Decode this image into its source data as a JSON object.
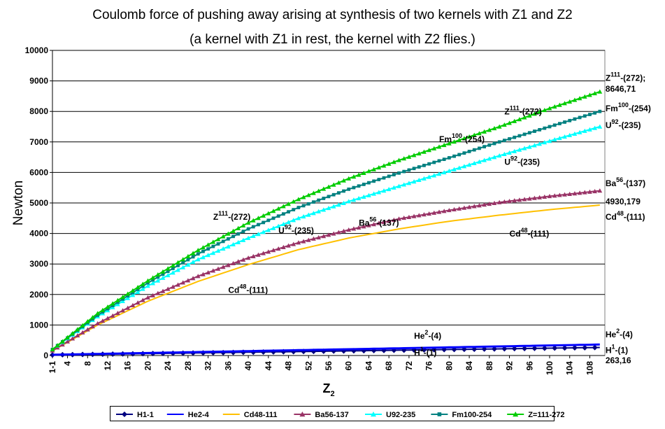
{
  "chart_data": {
    "type": "line",
    "title": "Coulomb force of pushing away arising at synthesis of two kernels with Z1 and Z2",
    "subtitle": "(a kernel with  Z1 in rest, the kernel with Z2 flies.)",
    "xlabel": "Z",
    "xlabel_subscript": "2",
    "ylabel": "Newton",
    "ylim": [
      0,
      10000
    ],
    "yticks": [
      0,
      1000,
      2000,
      3000,
      4000,
      5000,
      6000,
      7000,
      8000,
      9000,
      10000
    ],
    "xlim": [
      1,
      111
    ],
    "xticks": [
      "1-1",
      "4",
      "8",
      "12",
      "16",
      "20",
      "24",
      "28",
      "32",
      "36",
      "40",
      "44",
      "48",
      "52",
      "56",
      "60",
      "64",
      "68",
      "72",
      "76",
      "80",
      "84",
      "88",
      "92",
      "96",
      "100",
      "104",
      "108"
    ],
    "grid": "horizontal",
    "legend_position": "bottom",
    "series": [
      {
        "name": "H1-1",
        "color": "#000080",
        "marker": "diamond",
        "x": [
          1,
          110
        ],
        "y": [
          20,
          263.16
        ]
      },
      {
        "name": "He2-4",
        "color": "#0000ff",
        "marker": "none",
        "x": [
          1,
          110
        ],
        "y": [
          25,
          360
        ]
      },
      {
        "name": "Cd48-111",
        "color": "#ffc000",
        "marker": "none",
        "x": [
          1,
          10,
          20,
          30,
          40,
          50,
          60,
          70,
          80,
          90,
          100,
          110
        ],
        "y": [
          150,
          1000,
          1780,
          2430,
          2980,
          3470,
          3850,
          4150,
          4400,
          4600,
          4780,
          4930.179
        ]
      },
      {
        "name": "Ba56-137",
        "color": "#993366",
        "marker": "triangle",
        "x": [
          1,
          10,
          20,
          30,
          40,
          50,
          60,
          70,
          80,
          90,
          100,
          110
        ],
        "y": [
          160,
          1050,
          1900,
          2600,
          3200,
          3700,
          4120,
          4480,
          4760,
          5020,
          5220,
          5400
        ]
      },
      {
        "name": "U92-235",
        "color": "#00ffff",
        "marker": "triangle",
        "x": [
          1,
          10,
          20,
          30,
          40,
          50,
          60,
          70,
          80,
          90,
          100,
          110
        ],
        "y": [
          200,
          1280,
          2280,
          3150,
          3850,
          4500,
          5050,
          5550,
          6050,
          6550,
          7030,
          7500
        ]
      },
      {
        "name": "Fm100-254",
        "color": "#008080",
        "marker": "square",
        "x": [
          1,
          10,
          20,
          30,
          40,
          50,
          60,
          70,
          80,
          90,
          100,
          110
        ],
        "y": [
          200,
          1320,
          2380,
          3330,
          4150,
          4850,
          5450,
          5980,
          6480,
          7000,
          7500,
          8000
        ]
      },
      {
        "name": "Z=111-272",
        "color": "#00cc00",
        "marker": "triangle",
        "x": [
          1,
          10,
          20,
          30,
          40,
          50,
          60,
          70,
          80,
          90,
          100,
          110
        ],
        "y": [
          200,
          1380,
          2450,
          3450,
          4350,
          5120,
          5800,
          6400,
          6950,
          7500,
          8100,
          8646.71
        ]
      }
    ],
    "annotations": [
      {
        "id": "z111-end",
        "base": "Z",
        "sup": "111",
        "text": "-(272);",
        "x": 110,
        "y": 9000
      },
      {
        "id": "z111-end-value",
        "base": "8646,71",
        "sup": "",
        "text": "",
        "x": 110,
        "y": 8650
      },
      {
        "id": "fm-end",
        "base": "Fm",
        "sup": "100",
        "text": "-(254)",
        "x": 110,
        "y": 8000
      },
      {
        "id": "u-end",
        "base": "U",
        "sup": "92",
        "text": "-(235)",
        "x": 110,
        "y": 7450
      },
      {
        "id": "ba-end",
        "base": "Ba",
        "sup": "56",
        "text": "-(137)",
        "x": 110,
        "y": 5550
      },
      {
        "id": "cd-end-value",
        "base": "4930,179",
        "sup": "",
        "text": "",
        "x": 110,
        "y": 4950
      },
      {
        "id": "cd-end",
        "base": "Cd",
        "sup": "48",
        "text": "-(111)",
        "x": 110,
        "y": 4450
      },
      {
        "id": "he-end",
        "base": "He",
        "sup": "2",
        "text": "-(4)",
        "x": 110,
        "y": 600
      },
      {
        "id": "h-end",
        "base": "H",
        "sup": "1",
        "text": "-(1)",
        "x": 110,
        "y": 80
      },
      {
        "id": "h-end-value",
        "base": "263,16",
        "sup": "",
        "text": "",
        "x": 110,
        "y": -250
      },
      {
        "id": "z111-mid-upper",
        "base": "Z",
        "sup": "111",
        "text": "-(272)",
        "x": 91,
        "y": 7900
      },
      {
        "id": "fm-mid",
        "base": "Fm",
        "sup": "100",
        "text": "-(254)",
        "x": 78,
        "y": 7000
      },
      {
        "id": "u-mid-upper",
        "base": "U",
        "sup": "92",
        "text": "-(235)",
        "x": 91,
        "y": 6250
      },
      {
        "id": "ba-mid",
        "base": "Ba",
        "sup": "56",
        "text": "-(137)",
        "x": 62,
        "y": 4250
      },
      {
        "id": "cd-mid-upper",
        "base": "Cd",
        "sup": "48",
        "text": "-(111)",
        "x": 92,
        "y": 3900
      },
      {
        "id": "z111-mid-lower",
        "base": "Z",
        "sup": "111",
        "text": "-(272)",
        "x": 33,
        "y": 4450
      },
      {
        "id": "u-mid-lower",
        "base": "U",
        "sup": "92",
        "text": "-(235)",
        "x": 46,
        "y": 4000
      },
      {
        "id": "cd-mid-lower",
        "base": "Cd",
        "sup": "48",
        "text": "-(111)",
        "x": 36,
        "y": 2050
      },
      {
        "id": "he-mid",
        "base": "He",
        "sup": "2",
        "text": "-(4)",
        "x": 73,
        "y": 550
      },
      {
        "id": "h-mid",
        "base": "H",
        "sup": "1",
        "text": "-(1)",
        "x": 73,
        "y": 5
      }
    ]
  }
}
